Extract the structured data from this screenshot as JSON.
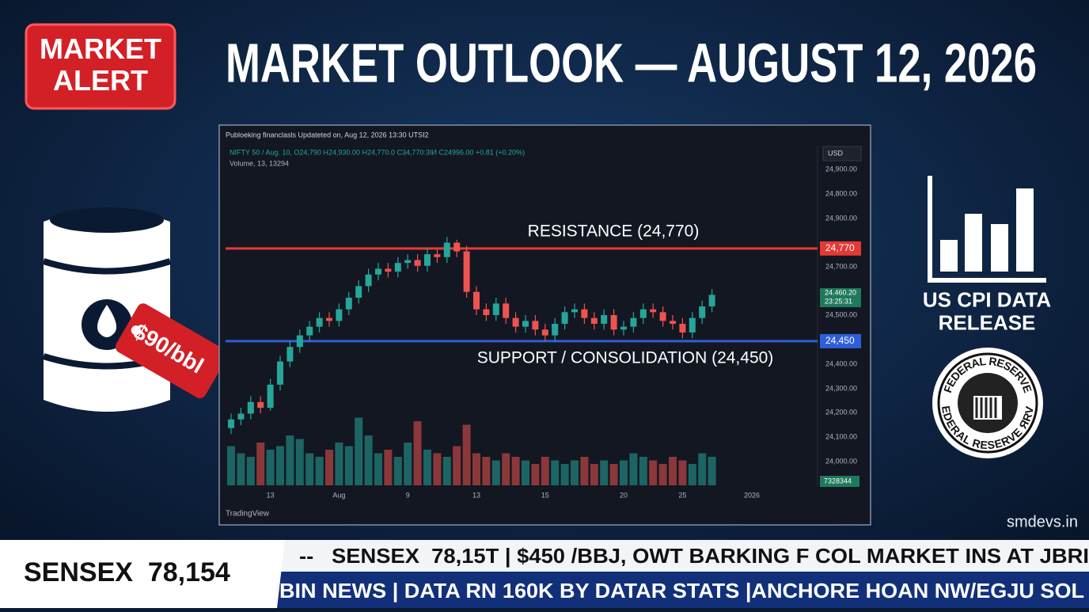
{
  "header": {
    "badge": "MARKET\nALERT",
    "title": "MARKET OUTLOOK — AUGUST 12, 2026"
  },
  "left_panel": {
    "price_tag": "$90/bbl"
  },
  "right_panel": {
    "cpi": "US CPI DATA\nRELEASE",
    "seal": "FEDERAL RESERVE",
    "seal_bottom": "FEDERAL RESERVE ЯRVE",
    "site": "smdevs.in"
  },
  "ticker": {
    "index": "SENSEX  78,154",
    "line1": "--   SENSEX  78,15T | $450 /BBJ, OWT BARKING F COL MARKET INS AT JBRI",
    "line2": "BIN NEWS | DATA RN 160K BY DATAR STATS |ANCHORE HOAN NW/EGJU SOL"
  },
  "chart_data": {
    "type": "candlestick",
    "caption": "Publoeking financlasls Updateted on, Aug 12, 2026 13:30 UTSI2",
    "legend_line": "NIFTY 50 / Aug. 10, O24,790  H24,930.00  H24,770.0  C34,770:3IИ  C24996.00  +0.81 (+0.20%)",
    "volume_line": "Volume, 13, 13294",
    "currency": "USD",
    "price_labels": [
      "24,900.00",
      "24,800.00",
      "24,900.00",
      "24,700.00",
      "24,500.00",
      "24,400.00",
      "24,300.00",
      "24,200.00",
      "24,100.00",
      "24,000.00"
    ],
    "last_price_badge": "24.460.20",
    "countdown_badge": "23:25:31",
    "volume_badge": "7328344",
    "x_end_label": "2026",
    "brand": "TradingView",
    "ylim": [
      23947,
      25122
    ],
    "y2lim": [
      0,
      100
    ],
    "levels": [
      {
        "label": "RESISTANCE (24,770)",
        "badge": "24,770",
        "value": 24770,
        "color": "#e53935"
      },
      {
        "label": "SUPPORT / CONSOLIDATION (24,450)",
        "badge": "24,450",
        "value": 24450,
        "color": "#2f5fd8"
      }
    ],
    "categories": [
      null,
      null,
      null,
      null,
      "13",
      null,
      null,
      null,
      null,
      null,
      null,
      "Aug",
      null,
      null,
      null,
      null,
      null,
      null,
      "9",
      null,
      null,
      null,
      null,
      null,
      null,
      "13",
      null,
      null,
      null,
      null,
      null,
      null,
      "15",
      null,
      null,
      null,
      null,
      null,
      null,
      null,
      "20",
      null,
      null,
      null,
      null,
      null,
      "25",
      null,
      null,
      null
    ],
    "open": [
      24150,
      24180,
      24200,
      24240,
      24220,
      24300,
      24380,
      24430,
      24470,
      24500,
      24530,
      24520,
      24560,
      24600,
      24640,
      24680,
      24700,
      24690,
      24720,
      24730,
      24710,
      24750,
      24740,
      24790,
      24760,
      24620,
      24560,
      24540,
      24580,
      24530,
      24500,
      24520,
      24490,
      24470,
      24510,
      24550,
      24560,
      24530,
      24510,
      24540,
      24490,
      24500,
      24530,
      24560,
      24550,
      24520,
      24510,
      24480,
      24530,
      24570
    ],
    "high": [
      24200,
      24220,
      24260,
      24260,
      24320,
      24400,
      24450,
      24490,
      24520,
      24550,
      24550,
      24580,
      24620,
      24660,
      24700,
      24720,
      24720,
      24740,
      24750,
      24750,
      24770,
      24770,
      24810,
      24800,
      24780,
      24640,
      24580,
      24600,
      24600,
      24550,
      24540,
      24540,
      24510,
      24530,
      24570,
      24580,
      24580,
      24550,
      24560,
      24560,
      24520,
      24550,
      24580,
      24580,
      24570,
      24540,
      24530,
      24550,
      24590,
      24630
    ],
    "low": [
      24130,
      24160,
      24180,
      24200,
      24210,
      24280,
      24360,
      24410,
      24450,
      24480,
      24500,
      24500,
      24540,
      24580,
      24620,
      24660,
      24670,
      24670,
      24700,
      24690,
      24690,
      24720,
      24720,
      24740,
      24600,
      24540,
      24520,
      24520,
      24510,
      24480,
      24480,
      24470,
      24450,
      24450,
      24490,
      24530,
      24510,
      24490,
      24490,
      24470,
      24470,
      24480,
      24510,
      24530,
      24500,
      24490,
      24460,
      24460,
      24510,
      24550
    ],
    "close": [
      24180,
      24200,
      24240,
      24220,
      24300,
      24380,
      24430,
      24470,
      24500,
      24530,
      24520,
      24560,
      24600,
      24640,
      24680,
      24700,
      24690,
      24720,
      24730,
      24710,
      24750,
      24740,
      24790,
      24760,
      24620,
      24560,
      24540,
      24580,
      24530,
      24500,
      24520,
      24490,
      24470,
      24510,
      24550,
      24560,
      24530,
      24510,
      24540,
      24490,
      24500,
      24530,
      24560,
      24550,
      24520,
      24510,
      24480,
      24530,
      24570,
      24610
    ],
    "volume": [
      55,
      45,
      40,
      60,
      50,
      55,
      70,
      65,
      45,
      40,
      50,
      60,
      55,
      95,
      70,
      45,
      50,
      40,
      60,
      90,
      50,
      45,
      40,
      55,
      85,
      45,
      40,
      35,
      45,
      40,
      35,
      30,
      40,
      35,
      30,
      35,
      40,
      30,
      35,
      30,
      35,
      45,
      40,
      35,
      30,
      40,
      35,
      30,
      45,
      40
    ],
    "up_color": "#26a69a",
    "down_color": "#ef5350"
  }
}
